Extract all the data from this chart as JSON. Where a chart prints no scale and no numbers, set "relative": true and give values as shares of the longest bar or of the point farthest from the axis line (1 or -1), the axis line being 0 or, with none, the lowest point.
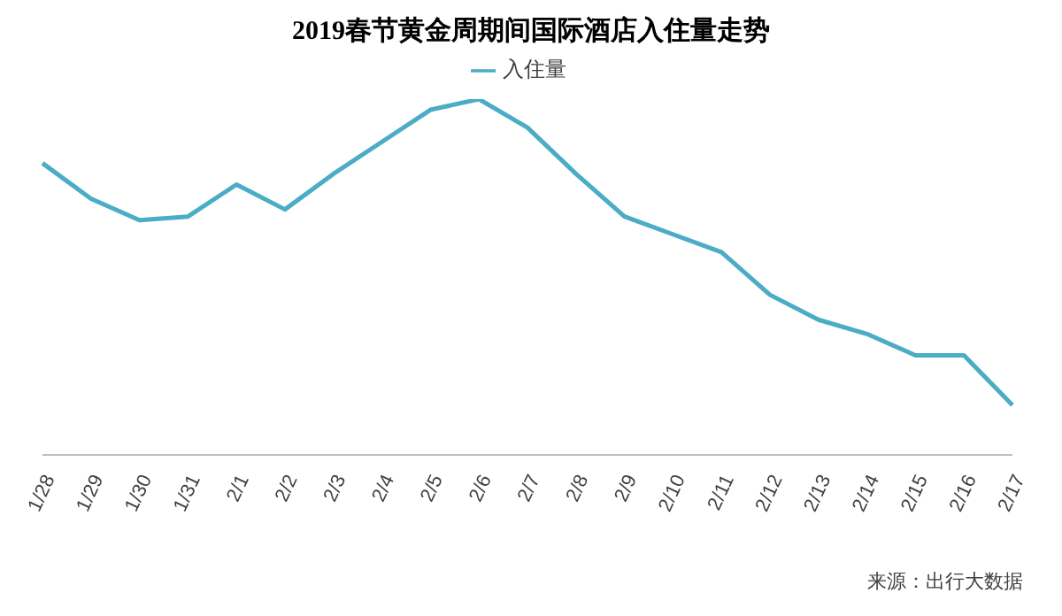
{
  "chart_data": {
    "type": "line",
    "title": "2019春节黄金周期间国际酒店入住量走势",
    "categories": [
      "1/28",
      "1/29",
      "1/30",
      "1/31",
      "2/1",
      "2/2",
      "2/3",
      "2/4",
      "2/5",
      "2/6",
      "2/7",
      "2/8",
      "2/9",
      "2/10",
      "2/11",
      "2/12",
      "2/13",
      "2/14",
      "2/15",
      "2/16",
      "2/17"
    ],
    "series": [
      {
        "name": "入住量",
        "color": "#4bacc6",
        "values": [
          0.82,
          0.72,
          0.66,
          0.67,
          0.76,
          0.69,
          0.79,
          0.88,
          0.97,
          1,
          0.92,
          0.79,
          0.67,
          0.62,
          0.57,
          0.45,
          0.38,
          0.34,
          0.28,
          0.28,
          0.14
        ]
      }
    ],
    "relative": true,
    "legend": "top",
    "grid": false,
    "marker": "none",
    "line_style": "solid",
    "annotations": [
      "来源：出行大数据"
    ]
  }
}
